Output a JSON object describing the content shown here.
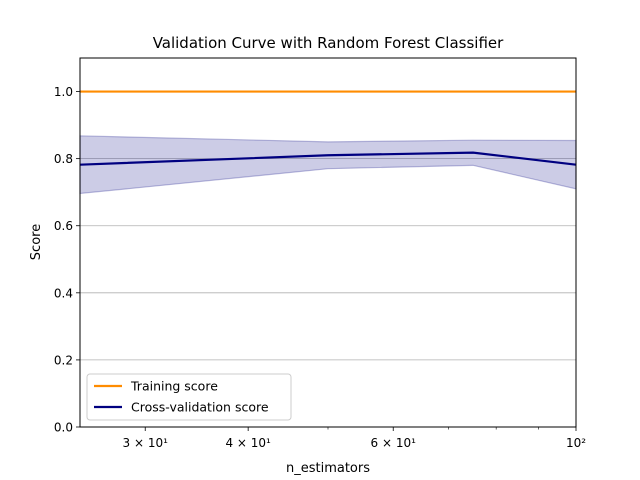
{
  "chart_data": {
    "type": "line",
    "title": "Validation Curve with Random Forest Classifier",
    "xlabel": "n_estimators",
    "ylabel": "Score",
    "xscale": "log",
    "xlim": [
      25,
      100
    ],
    "ylim": [
      0.0,
      1.1
    ],
    "yticks": [
      0.0,
      0.2,
      0.4,
      0.6,
      0.8,
      1.0
    ],
    "ytick_labels": [
      "0.0",
      "0.2",
      "0.4",
      "0.6",
      "0.8",
      "1.0"
    ],
    "xticks_major": [
      {
        "value": 30,
        "label": "3 × 10¹"
      },
      {
        "value": 40,
        "label": "4 × 10¹"
      },
      {
        "value": 60,
        "label": "6 × 10¹"
      },
      {
        "value": 100,
        "label": "10²"
      }
    ],
    "grid": "y",
    "legend_position": "lower-left",
    "x": [
      25,
      50,
      75,
      100
    ],
    "series": [
      {
        "name": "Training score",
        "color": "#ff8c00",
        "values": [
          1.0,
          1.0,
          1.0,
          1.0
        ]
      },
      {
        "name": "Cross-validation score",
        "color": "#000080",
        "band_color": "#000080",
        "values": [
          0.782,
          0.81,
          0.818,
          0.782
        ],
        "band_lower": [
          0.696,
          0.77,
          0.78,
          0.71
        ],
        "band_upper": [
          0.868,
          0.85,
          0.855,
          0.854
        ]
      }
    ]
  }
}
